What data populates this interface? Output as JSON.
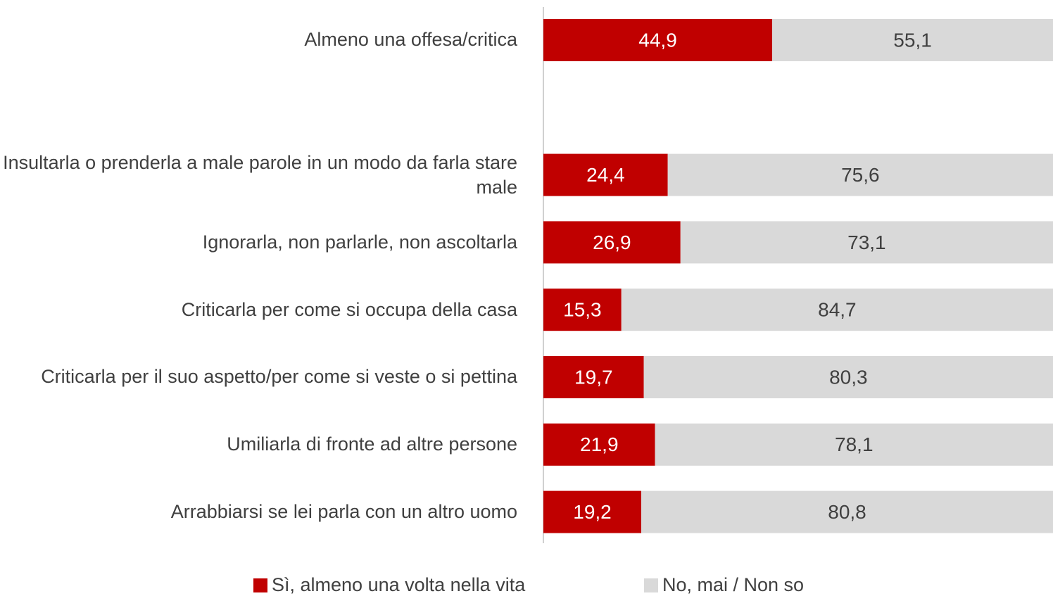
{
  "chart_data": {
    "type": "stacked_bar_horizontal",
    "categories": [
      "Almeno una offesa/critica",
      null,
      "Insultarla o prenderla a male parole in un modo da farla stare male",
      "Ignorarla, non parlarle, non ascoltarla",
      "Criticarla per come si occupa della casa",
      "Criticarla per il suo aspetto/per come si veste o si pettina",
      "Umiliarla di fronte ad altre persone",
      "Arrabbiarsi se lei parla con un altro uomo"
    ],
    "series": [
      {
        "name": "Sì, almeno una volta nella vita",
        "color": "#c00000",
        "values": [
          44.9,
          null,
          24.4,
          26.9,
          15.3,
          19.7,
          21.9,
          19.2
        ],
        "value_labels": [
          "44,9",
          null,
          "24,4",
          "26,9",
          "15,3",
          "19,7",
          "21,9",
          "19,2"
        ]
      },
      {
        "name": "No, mai / Non so",
        "color": "#d9d9d9",
        "values": [
          55.1,
          null,
          75.6,
          73.1,
          84.7,
          80.3,
          78.1,
          80.8
        ],
        "value_labels": [
          "55,1",
          null,
          "75,6",
          "73,1",
          "84,7",
          "80,3",
          "78,1",
          "80,8"
        ]
      }
    ]
  }
}
